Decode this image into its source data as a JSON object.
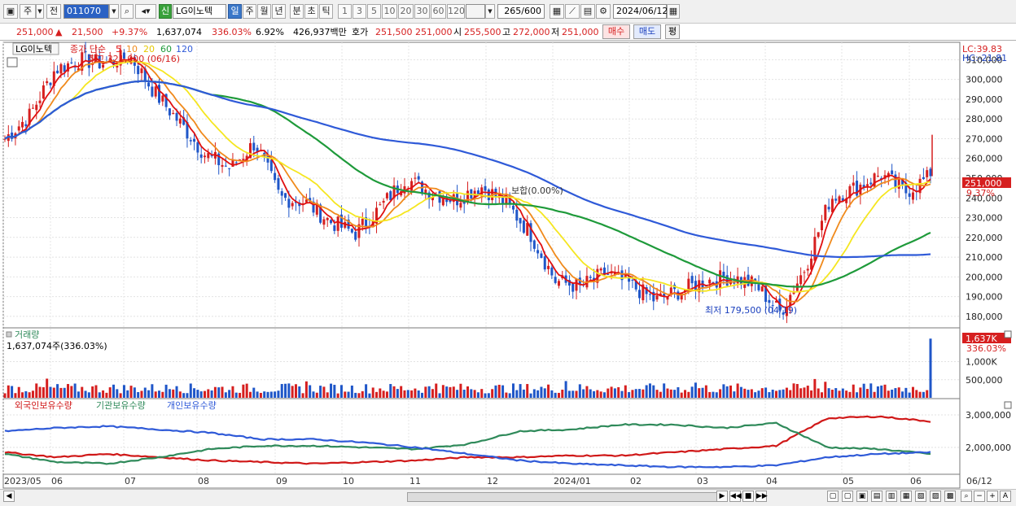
{
  "toolbar": {
    "period_label": "주",
    "prev_label": "전",
    "code_value": "011070",
    "name_badge": "신",
    "name_value": "LG이노텍",
    "periods": [
      "일",
      "주",
      "월",
      "년",
      "분",
      "초",
      "틱"
    ],
    "minutes": [
      "1",
      "3",
      "5",
      "10",
      "20",
      "30",
      "60",
      "120"
    ],
    "count_value": "265",
    "count_total": "/600",
    "date_value": "2024/06/12"
  },
  "pricebar": {
    "price": "251,000",
    "change": "21,500",
    "change_pct": "+9.37%",
    "volume": "1,637,074",
    "volume_ratio": "336.03%",
    "turnover": "6.92%",
    "amount": "426,937백만",
    "quote_label": "호가",
    "ask": "251,500",
    "bid": "251,000",
    "open_label": "시",
    "open": "255,500",
    "high_label": "고",
    "high": "272,000",
    "low_label": "저",
    "low": "251,000",
    "buy_label": "매수",
    "sell_label": "매도",
    "flat_label": "평"
  },
  "price_panel": {
    "name_tag": "LG이노텍",
    "ma_label": "종가 단순",
    "ma_periods": [
      "5",
      "10",
      "20",
      "60",
      "120"
    ],
    "max_note": "최고 321,000 (06/16)",
    "min_note": "최저 179,500 (04/19)",
    "flat_note": "보합(0.00%)",
    "lc": "LC:39.83",
    "hc": "HC:-21.81",
    "last_price_tag": "251,000",
    "last_pct_tag": "9.37%",
    "y_ticks": [
      "310,000",
      "300,000",
      "290,000",
      "280,000",
      "270,000",
      "260,000",
      "250,000",
      "240,000",
      "230,000",
      "220,000",
      "210,000",
      "200,000",
      "190,000",
      "180,000"
    ]
  },
  "volume_panel": {
    "title": "거래량",
    "value_note": "1,637,074주(336.03%)",
    "last_tag": "1,637K",
    "last_pct": "336.03%",
    "y_ticks": [
      "1,000K",
      "500,000"
    ]
  },
  "holdings_panel": {
    "legend": [
      "외국인보유수량",
      "기관보유수량",
      "개인보유수량"
    ],
    "y_ticks": [
      "3,000,000",
      "2,000,000"
    ]
  },
  "x_axis": {
    "labels": [
      "2023/05",
      "06",
      "07",
      "08",
      "09",
      "10",
      "11",
      "12",
      "2024/01",
      "02",
      "03",
      "04",
      "05",
      "06",
      "06/12"
    ]
  },
  "colors": {
    "up": "#d61f1f",
    "down": "#1f56c8",
    "ma5": "#e01010",
    "ma10": "#f08a1c",
    "ma20": "#f5e620",
    "ma60": "#1e9a3a",
    "ma120": "#2f5ad8",
    "foreign": "#d01818",
    "institution": "#2f8a5a",
    "individual": "#2f5ad8"
  },
  "chart_data": [
    {
      "type": "candlestick",
      "title": "LG이노텍",
      "x_unit": "week",
      "x": [
        "2023/05",
        "06",
        "07",
        "08",
        "09",
        "10",
        "11",
        "12",
        "2024/01",
        "02",
        "03",
        "04",
        "05",
        "06"
      ],
      "close_path": [
        270000,
        282000,
        305000,
        310000,
        308000,
        312000,
        293000,
        278000,
        262000,
        255000,
        268000,
        240000,
        238000,
        228000,
        222000,
        235000,
        250000,
        243000,
        239000,
        246000,
        238000,
        222000,
        198000,
        195000,
        202000,
        196000,
        188000,
        193000,
        198000,
        200000,
        196000,
        182000,
        205000,
        240000,
        245000,
        252000,
        243000,
        251000
      ],
      "ma_periods": [
        5,
        10,
        20,
        60,
        120
      ],
      "ylim": [
        175000,
        318000
      ]
    },
    {
      "type": "bar",
      "title": "거래량",
      "last_value": 1637074,
      "ylim": [
        0,
        1800000
      ]
    },
    {
      "type": "line",
      "series": [
        {
          "name": "외국인보유수량",
          "values": [
            1850000,
            1700000,
            1800000,
            1700000,
            1600000,
            1550000,
            1500000,
            1550000,
            1600000,
            1700000,
            1700000,
            1750000,
            1750000,
            1850000,
            1950000,
            2050000,
            2900000,
            2950000,
            2800000
          ]
        },
        {
          "name": "기관보유수량",
          "values": [
            1800000,
            1550000,
            1500000,
            1700000,
            1950000,
            2050000,
            2050000,
            2000000,
            1950000,
            2100000,
            2500000,
            2550000,
            2700000,
            2700000,
            2600000,
            2750000,
            2000000,
            1950000,
            1800000
          ]
        },
        {
          "name": "개인보유수량",
          "values": [
            2500000,
            2600000,
            2650000,
            2550000,
            2450000,
            2250000,
            2250000,
            2150000,
            2000000,
            1800000,
            1600000,
            1500000,
            1450000,
            1400000,
            1400000,
            1450000,
            1700000,
            1800000,
            1850000
          ]
        }
      ],
      "ylim": [
        1200000,
        3100000
      ]
    }
  ]
}
